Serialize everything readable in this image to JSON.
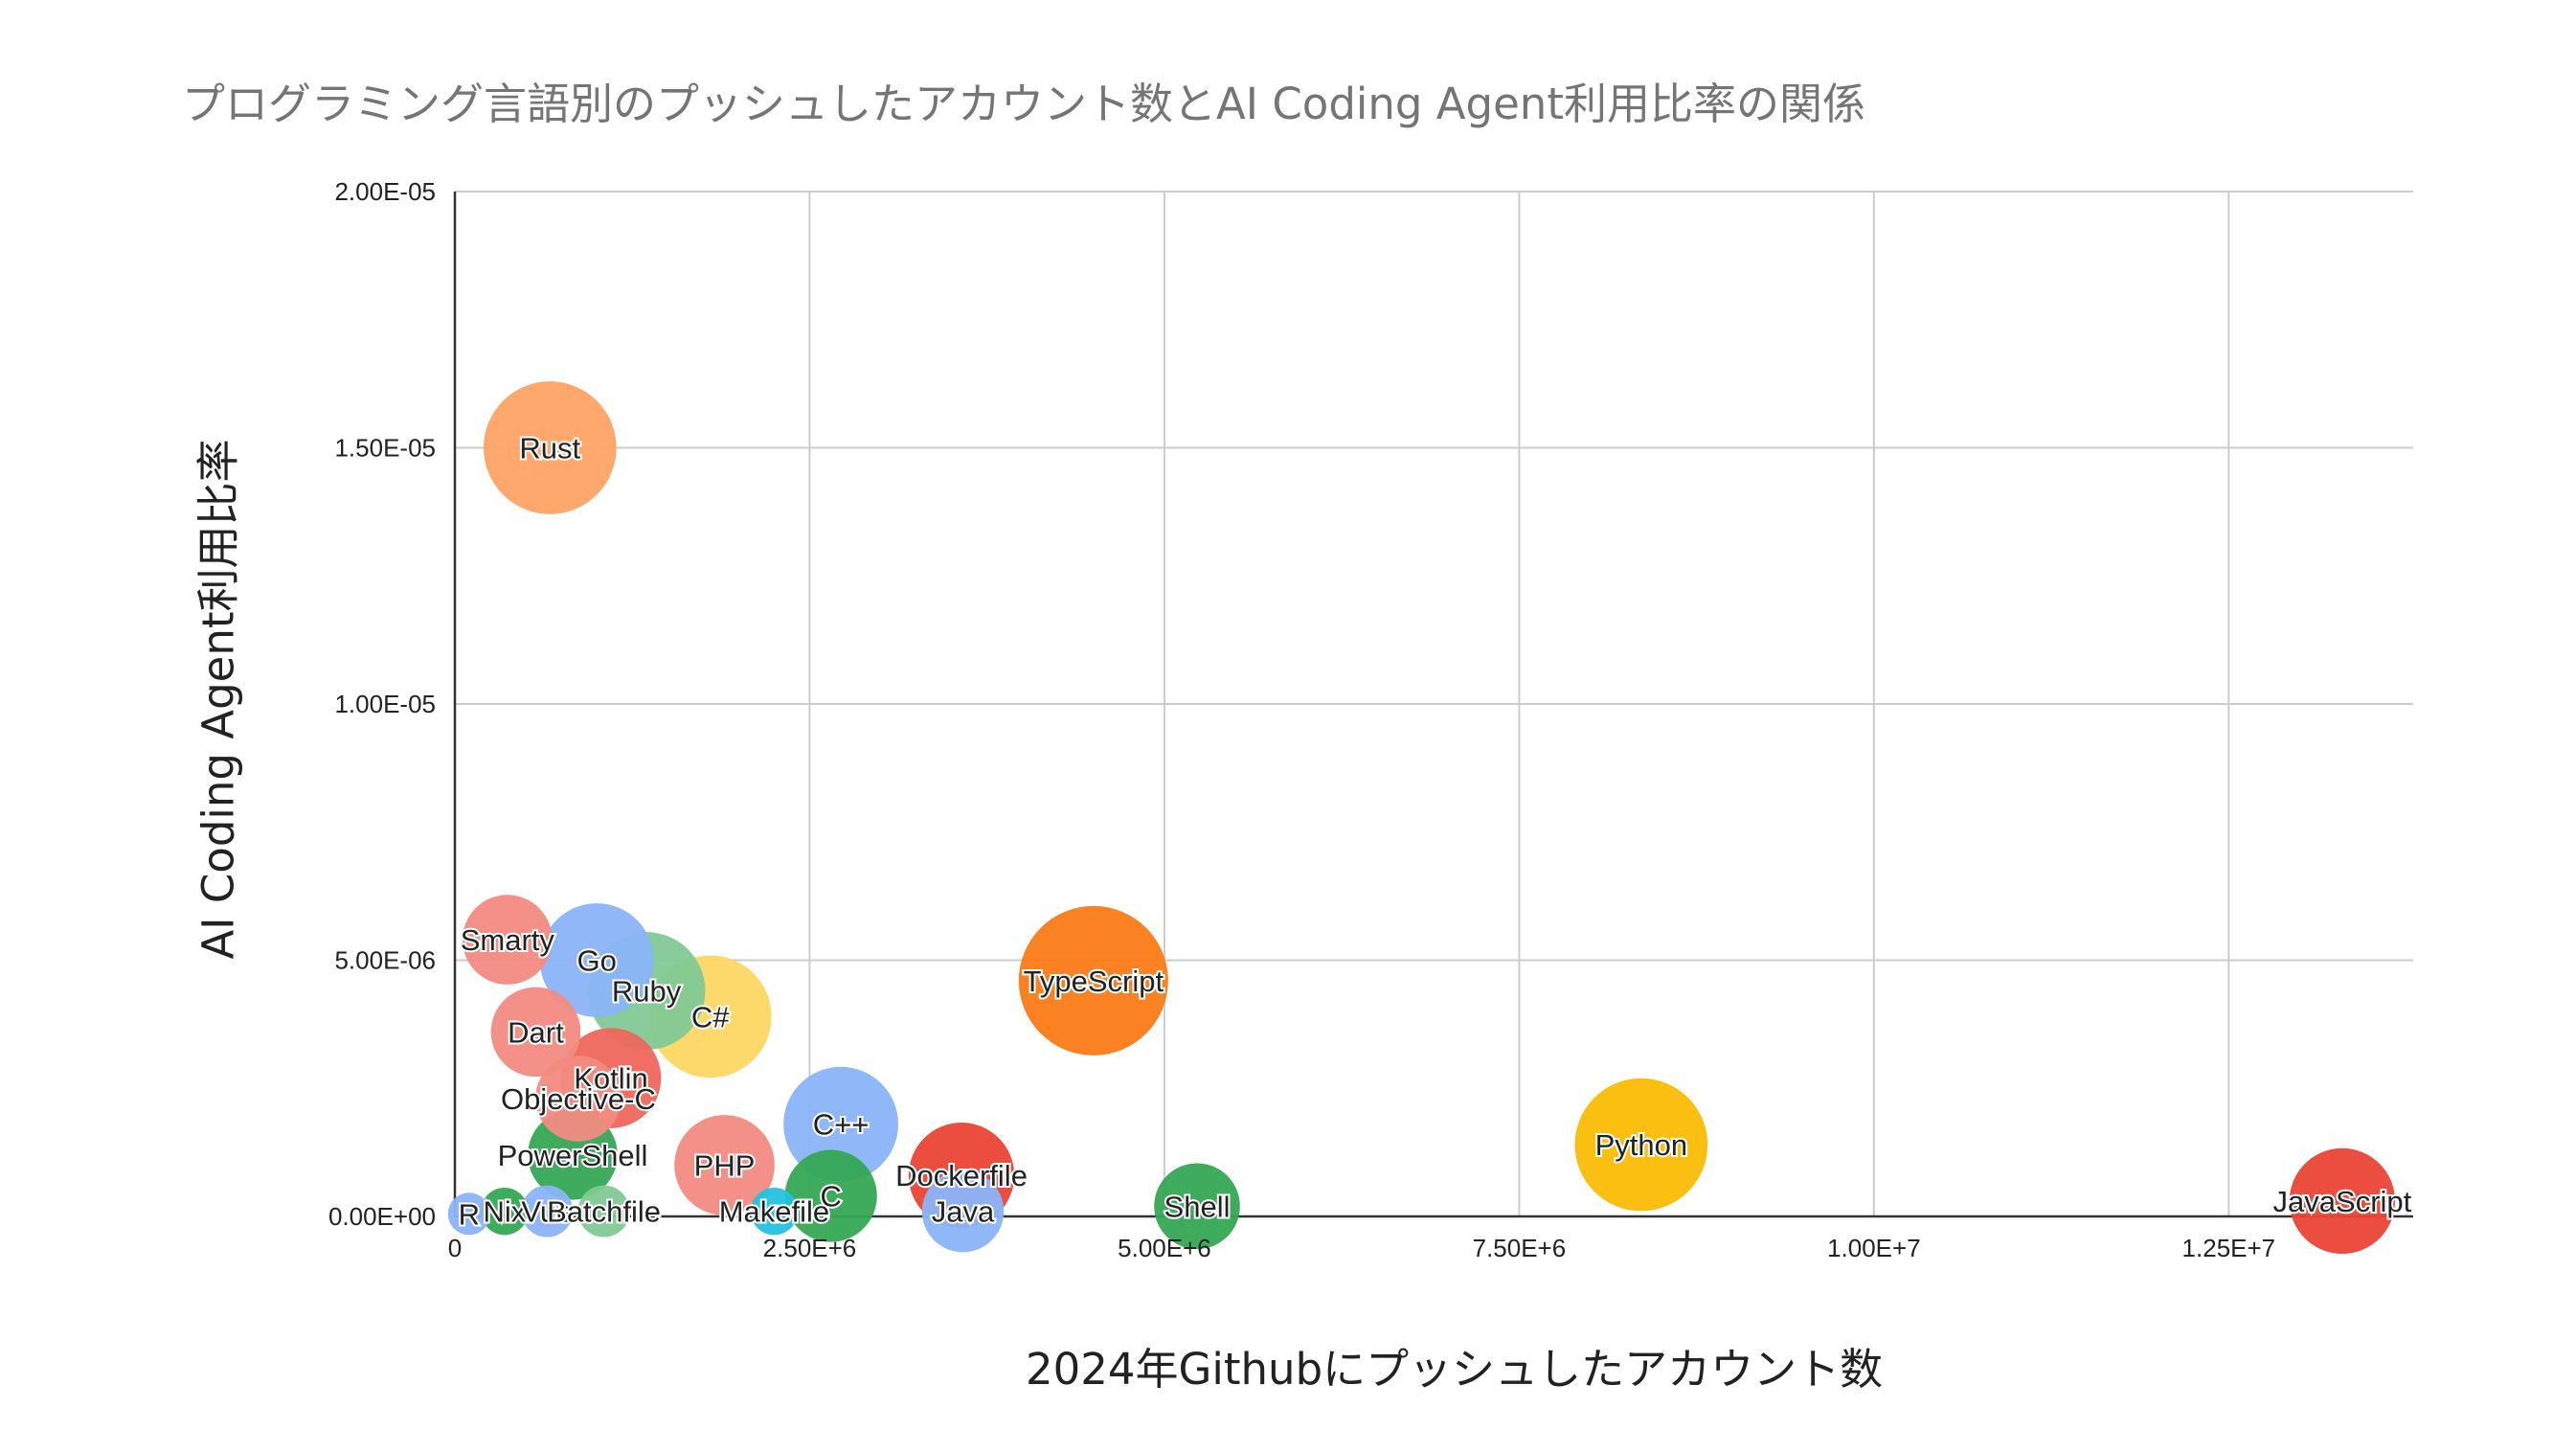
{
  "chart_data": {
    "type": "bubble",
    "title": "プログラミング言語別のプッシュしたアカウント数とAI Coding Agent利用比率の関係",
    "xlabel": "2024年Githubにプッシュしたアカウント数",
    "ylabel": "AI Coding Agent利用比率",
    "xlim": [
      0,
      13800000
    ],
    "ylim": [
      0,
      2e-05
    ],
    "grid": true,
    "x_ticks": [
      "0",
      "2.50E+6",
      "5.00E+6",
      "7.50E+6",
      "1.00E+7",
      "1.25E+7"
    ],
    "x_tick_values": [
      0,
      2500000,
      5000000,
      7500000,
      10000000,
      12500000
    ],
    "y_ticks": [
      "0.00E+00",
      "5.00E-06",
      "1.00E-05",
      "1.50E-05",
      "2.00E-05"
    ],
    "y_tick_values": [
      0,
      5e-06,
      1e-05,
      1.5e-05,
      2e-05
    ],
    "points": [
      {
        "label": "Rust",
        "x": 670000,
        "y": 1.5e-05,
        "size": 0.79,
        "color": "#ffa366"
      },
      {
        "label": "Smarty",
        "x": 370000,
        "y": 5.4e-06,
        "size": 0.36,
        "color": "#f28b82"
      },
      {
        "label": "Go",
        "x": 1000000,
        "y": 5e-06,
        "size": 0.58,
        "color": "#8ab4f8"
      },
      {
        "label": "Ruby",
        "x": 1350000,
        "y": 4.4e-06,
        "size": 0.62,
        "color": "#81c995"
      },
      {
        "label": "C#",
        "x": 1800000,
        "y": 3.9e-06,
        "size": 0.67,
        "color": "#fdd663"
      },
      {
        "label": "TypeScript",
        "x": 4500000,
        "y": 4.6e-06,
        "size": 1.0,
        "color": "#fa7b17"
      },
      {
        "label": "Dart",
        "x": 570000,
        "y": 3.6e-06,
        "size": 0.36,
        "color": "#f28b82"
      },
      {
        "label": "Kotlin",
        "x": 1100000,
        "y": 2.7e-06,
        "size": 0.45,
        "color": "#ee675c"
      },
      {
        "label": "Objective-C",
        "x": 870000,
        "y": 2.3e-06,
        "size": 0.33,
        "color": "#f28b82"
      },
      {
        "label": "C++",
        "x": 2720000,
        "y": 1.8e-06,
        "size": 0.59,
        "color": "#8ab4f8"
      },
      {
        "label": "PowerShell",
        "x": 830000,
        "y": 1.2e-06,
        "size": 0.36,
        "color": "#34a853"
      },
      {
        "label": "PHP",
        "x": 1900000,
        "y": 1e-06,
        "size": 0.45,
        "color": "#f28b82"
      },
      {
        "label": "Dockerfile",
        "x": 3570000,
        "y": 8e-07,
        "size": 0.5,
        "color": "#ea4335"
      },
      {
        "label": "Python",
        "x": 8360000,
        "y": 1.4e-06,
        "size": 0.79,
        "color": "#fbbc04"
      },
      {
        "label": "C",
        "x": 2650000,
        "y": 4e-07,
        "size": 0.38,
        "color": "#34a853"
      },
      {
        "label": "Shell",
        "x": 5230000,
        "y": 2e-07,
        "size": 0.33,
        "color": "#34a853"
      },
      {
        "label": "Java",
        "x": 3580000,
        "y": 1e-07,
        "size": 0.3,
        "color": "#8ab4f8"
      },
      {
        "label": "Makefile",
        "x": 2250000,
        "y": 1e-07,
        "size": 0.1,
        "color": "#24c1e0"
      },
      {
        "label": "Nix",
        "x": 350000,
        "y": 1e-07,
        "size": 0.1,
        "color": "#34a853"
      },
      {
        "label": "Vue",
        "x": 650000,
        "y": 1e-07,
        "size": 0.12,
        "color": "#8ab4f8"
      },
      {
        "label": "Batchfile",
        "x": 1050000,
        "y": 1e-07,
        "size": 0.12,
        "color": "#81c995"
      },
      {
        "label": "R",
        "x": 100000,
        "y": 5e-08,
        "size": 0.08,
        "color": "#8ab4f8"
      },
      {
        "label": "JavaScript",
        "x": 13300000,
        "y": 3e-07,
        "size": 0.5,
        "color": "#ea4335"
      }
    ]
  }
}
